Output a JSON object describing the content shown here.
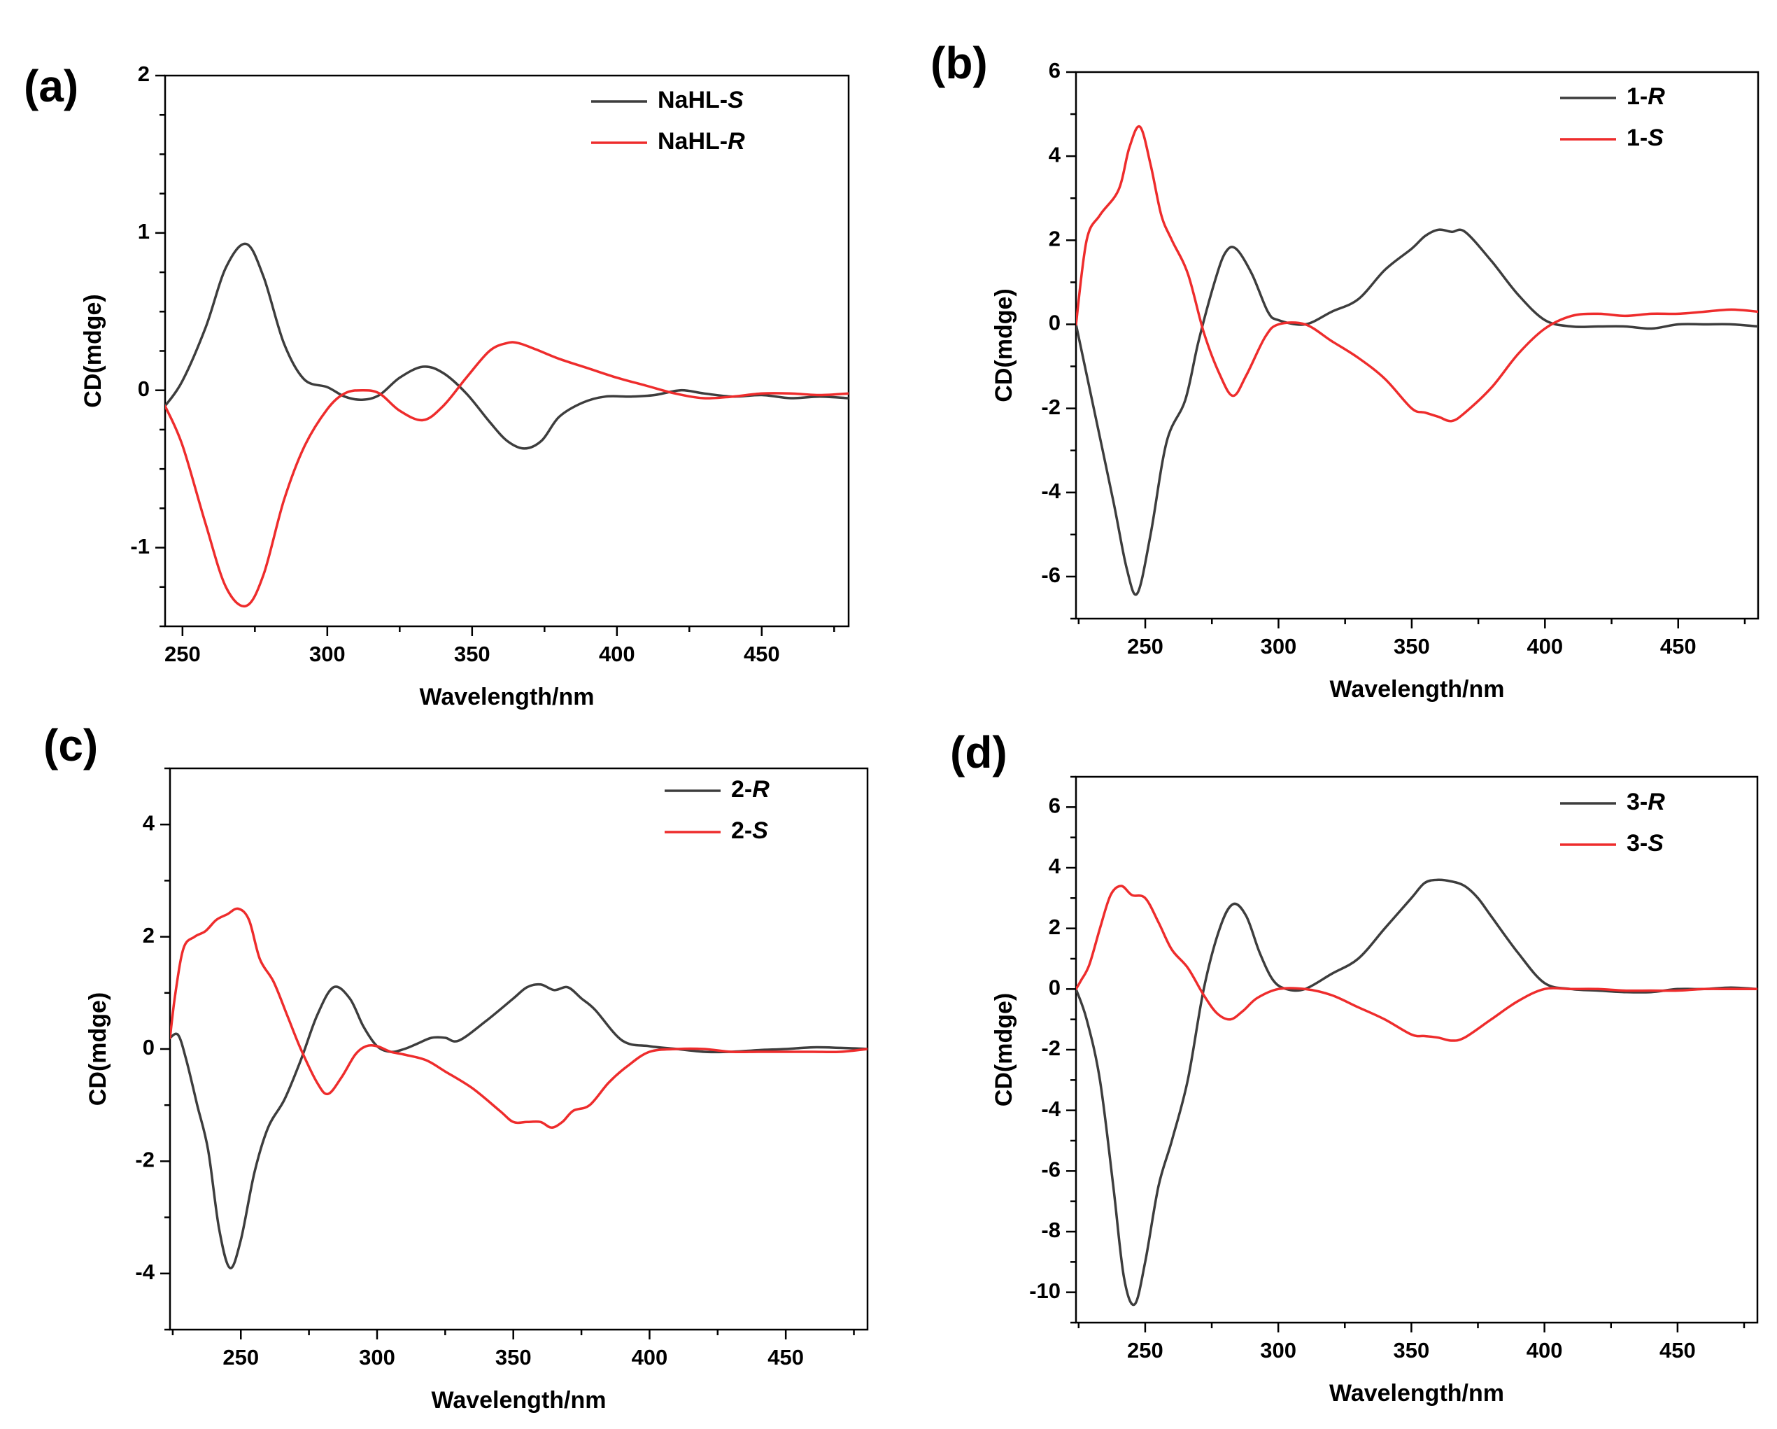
{
  "colors": {
    "black_series": "#3d3d3d",
    "red_series": "#ee2c2c",
    "axis": "#000000"
  },
  "chart_data": [
    {
      "type": "line",
      "panel_label": "(a)",
      "xlabel": "Wavelength/nm",
      "ylabel": "CD(mdge)",
      "xlim": [
        244,
        480
      ],
      "ylim": [
        -1.5,
        2
      ],
      "xticks": [
        250,
        300,
        350,
        400,
        450
      ],
      "yticks": [
        -1,
        0,
        1,
        2
      ],
      "xtick_labels": [
        "250",
        "300",
        "350",
        "400",
        "450"
      ],
      "ytick_labels": [
        "-1",
        "0",
        "1",
        "2"
      ],
      "xminor": 25,
      "yminor": 0.25,
      "legend_position": "top-right",
      "series": [
        {
          "name_prefix": "NaHL-",
          "name_suffix": "S",
          "color": "#3d3d3d",
          "x": [
            244,
            250,
            258,
            265,
            272,
            278,
            285,
            292,
            300,
            306,
            312,
            318,
            325,
            333,
            340,
            348,
            356,
            362,
            368,
            374,
            380,
            388,
            396,
            405,
            413,
            422,
            430,
            440,
            450,
            460,
            470,
            480
          ],
          "y": [
            -0.1,
            0.06,
            0.4,
            0.78,
            0.93,
            0.72,
            0.3,
            0.07,
            0.02,
            -0.04,
            -0.06,
            -0.03,
            0.08,
            0.15,
            0.11,
            -0.02,
            -0.2,
            -0.32,
            -0.37,
            -0.32,
            -0.17,
            -0.08,
            -0.04,
            -0.04,
            -0.03,
            0.0,
            -0.02,
            -0.04,
            -0.03,
            -0.05,
            -0.04,
            -0.05
          ]
        },
        {
          "name_prefix": "NaHL-",
          "name_suffix": "R",
          "color": "#ee2c2c",
          "x": [
            244,
            250,
            258,
            265,
            272,
            278,
            285,
            292,
            300,
            306,
            312,
            318,
            325,
            333,
            340,
            348,
            356,
            362,
            366,
            372,
            380,
            390,
            400,
            410,
            420,
            430,
            440,
            450,
            460,
            470,
            480
          ],
          "y": [
            -0.1,
            -0.35,
            -0.85,
            -1.25,
            -1.37,
            -1.17,
            -0.7,
            -0.36,
            -0.12,
            -0.02,
            0.0,
            -0.02,
            -0.13,
            -0.19,
            -0.1,
            0.08,
            0.25,
            0.3,
            0.3,
            0.26,
            0.2,
            0.14,
            0.08,
            0.03,
            -0.02,
            -0.05,
            -0.04,
            -0.02,
            -0.02,
            -0.03,
            -0.02
          ]
        }
      ]
    },
    {
      "type": "line",
      "panel_label": "(b)",
      "xlabel": "Wavelength/nm",
      "ylabel": "CD(mdge)",
      "xlim": [
        224,
        480
      ],
      "ylim": [
        -7,
        6
      ],
      "xticks": [
        250,
        300,
        350,
        400,
        450
      ],
      "yticks": [
        -6,
        -4,
        -2,
        0,
        2,
        4,
        6
      ],
      "xtick_labels": [
        "250",
        "300",
        "350",
        "400",
        "450"
      ],
      "ytick_labels": [
        "-6",
        "-4",
        "-2",
        "0",
        "2",
        "4",
        "6"
      ],
      "xminor": 25,
      "yminor": 1,
      "legend_position": "top-right",
      "series": [
        {
          "name_prefix": "1-",
          "name_suffix": "R",
          "color": "#3d3d3d",
          "x": [
            224,
            230,
            238,
            243,
            247,
            252,
            258,
            265,
            270,
            276,
            280,
            284,
            290,
            296,
            300,
            310,
            320,
            330,
            340,
            350,
            355,
            360,
            365,
            370,
            380,
            390,
            400,
            410,
            420,
            430,
            440,
            450,
            460,
            470,
            480
          ],
          "y": [
            0,
            -1.8,
            -4.2,
            -5.8,
            -6.4,
            -5.0,
            -2.8,
            -1.8,
            -0.4,
            1.0,
            1.7,
            1.8,
            1.2,
            0.3,
            0.1,
            0.0,
            0.3,
            0.6,
            1.3,
            1.8,
            2.1,
            2.25,
            2.2,
            2.2,
            1.5,
            0.7,
            0.1,
            -0.05,
            -0.05,
            -0.05,
            -0.1,
            0.0,
            0.0,
            0.0,
            -0.05
          ]
        },
        {
          "name_prefix": "1-",
          "name_suffix": "S",
          "color": "#ee2c2c",
          "x": [
            224,
            228,
            233,
            240,
            244,
            248,
            252,
            256,
            260,
            266,
            272,
            278,
            283,
            288,
            295,
            300,
            310,
            320,
            330,
            340,
            350,
            355,
            360,
            365,
            370,
            380,
            390,
            400,
            410,
            420,
            430,
            440,
            450,
            460,
            470,
            480
          ],
          "y": [
            0,
            2.0,
            2.6,
            3.2,
            4.2,
            4.7,
            3.8,
            2.6,
            2.0,
            1.2,
            -0.2,
            -1.2,
            -1.7,
            -1.2,
            -0.3,
            0.0,
            0.0,
            -0.4,
            -0.8,
            -1.3,
            -2.0,
            -2.1,
            -2.2,
            -2.3,
            -2.1,
            -1.5,
            -0.7,
            -0.1,
            0.2,
            0.25,
            0.2,
            0.25,
            0.25,
            0.3,
            0.35,
            0.3
          ]
        }
      ]
    },
    {
      "type": "line",
      "panel_label": "(c)",
      "xlabel": "Wavelength/nm",
      "ylabel": "CD(mdge)",
      "xlim": [
        224,
        480
      ],
      "ylim": [
        -5,
        5
      ],
      "xticks": [
        250,
        300,
        350,
        400,
        450
      ],
      "yticks": [
        -4,
        -2,
        0,
        2,
        4
      ],
      "xtick_labels": [
        "250",
        "300",
        "350",
        "400",
        "450"
      ],
      "ytick_labels": [
        "-4",
        "-2",
        "0",
        "2",
        "4"
      ],
      "xminor": 25,
      "yminor": 1,
      "legend_position": "top-right",
      "series": [
        {
          "name_prefix": "2-",
          "name_suffix": "R",
          "color": "#3d3d3d",
          "x": [
            224,
            227,
            230,
            234,
            238,
            242,
            246,
            250,
            255,
            260,
            266,
            272,
            278,
            284,
            290,
            295,
            300,
            305,
            310,
            315,
            320,
            325,
            330,
            340,
            350,
            355,
            360,
            365,
            370,
            375,
            380,
            390,
            400,
            410,
            420,
            430,
            440,
            450,
            460,
            470,
            480
          ],
          "y": [
            0.2,
            0.25,
            -0.2,
            -1.0,
            -1.8,
            -3.2,
            -3.9,
            -3.4,
            -2.2,
            -1.4,
            -0.9,
            -0.2,
            0.6,
            1.1,
            0.9,
            0.4,
            0.05,
            -0.05,
            0.0,
            0.1,
            0.2,
            0.2,
            0.15,
            0.5,
            0.9,
            1.1,
            1.15,
            1.05,
            1.1,
            0.9,
            0.7,
            0.15,
            0.05,
            0.0,
            -0.05,
            -0.05,
            -0.02,
            0.0,
            0.03,
            0.02,
            0.0
          ]
        },
        {
          "name_prefix": "2-",
          "name_suffix": "S",
          "color": "#ee2c2c",
          "x": [
            224,
            226,
            229,
            233,
            237,
            241,
            245,
            249,
            253,
            257,
            262,
            267,
            272,
            278,
            282,
            287,
            292,
            296,
            300,
            305,
            310,
            318,
            325,
            335,
            345,
            350,
            355,
            360,
            364,
            368,
            372,
            378,
            385,
            392,
            400,
            410,
            420,
            430,
            440,
            450,
            460,
            470,
            480
          ],
          "y": [
            0.2,
            1.0,
            1.8,
            2.0,
            2.1,
            2.3,
            2.4,
            2.5,
            2.3,
            1.6,
            1.2,
            0.6,
            0.0,
            -0.6,
            -0.8,
            -0.5,
            -0.1,
            0.05,
            0.05,
            -0.05,
            -0.1,
            -0.2,
            -0.4,
            -0.7,
            -1.1,
            -1.3,
            -1.3,
            -1.3,
            -1.4,
            -1.3,
            -1.1,
            -1.0,
            -0.6,
            -0.3,
            -0.05,
            0.0,
            0.0,
            -0.05,
            -0.05,
            -0.05,
            -0.05,
            -0.05,
            0.0
          ]
        }
      ]
    },
    {
      "type": "line",
      "panel_label": "(d)",
      "xlabel": "Wavelength/nm",
      "ylabel": "CD(mdge)",
      "xlim": [
        224,
        480
      ],
      "ylim": [
        -11,
        7
      ],
      "xticks": [
        250,
        300,
        350,
        400,
        450
      ],
      "yticks": [
        -10,
        -8,
        -6,
        -4,
        -2,
        0,
        2,
        4,
        6
      ],
      "xtick_labels": [
        "250",
        "300",
        "350",
        "400",
        "450"
      ],
      "ytick_labels": [
        "-10",
        "-8",
        "-6",
        "-4",
        "-2",
        "0",
        "2",
        "4",
        "6"
      ],
      "xminor": 25,
      "yminor": 1,
      "legend_position": "top-right",
      "series": [
        {
          "name_prefix": "3-",
          "name_suffix": "R",
          "color": "#3d3d3d",
          "x": [
            224,
            228,
            233,
            238,
            242,
            246,
            250,
            255,
            260,
            266,
            272,
            278,
            283,
            288,
            293,
            298,
            303,
            310,
            320,
            330,
            340,
            350,
            355,
            360,
            365,
            370,
            375,
            380,
            390,
            400,
            410,
            420,
            430,
            440,
            450,
            460,
            470,
            480
          ],
          "y": [
            0,
            -1.0,
            -3.0,
            -6.5,
            -9.5,
            -10.4,
            -9.0,
            -6.5,
            -5.0,
            -3.0,
            0.0,
            2.0,
            2.8,
            2.4,
            1.2,
            0.3,
            0.0,
            0.0,
            0.5,
            1.0,
            2.0,
            3.0,
            3.5,
            3.6,
            3.55,
            3.4,
            3.0,
            2.4,
            1.2,
            0.2,
            0.0,
            -0.05,
            -0.1,
            -0.1,
            0.0,
            0.0,
            0.05,
            0.0
          ]
        },
        {
          "name_prefix": "3-",
          "name_suffix": "S",
          "color": "#ee2c2c",
          "x": [
            224,
            226,
            229,
            233,
            237,
            241,
            245,
            250,
            255,
            260,
            266,
            272,
            277,
            282,
            287,
            292,
            300,
            310,
            320,
            330,
            340,
            350,
            355,
            360,
            365,
            370,
            380,
            390,
            400,
            410,
            420,
            430,
            440,
            450,
            460,
            470,
            480
          ],
          "y": [
            0,
            0.3,
            0.8,
            2.0,
            3.1,
            3.4,
            3.1,
            3.0,
            2.2,
            1.3,
            0.7,
            -0.2,
            -0.8,
            -1.0,
            -0.7,
            -0.3,
            0.0,
            0.0,
            -0.2,
            -0.6,
            -1.0,
            -1.5,
            -1.55,
            -1.6,
            -1.7,
            -1.6,
            -1.0,
            -0.4,
            0.0,
            0.0,
            0.0,
            -0.05,
            -0.05,
            -0.05,
            0.0,
            0.0,
            0.0
          ]
        }
      ]
    }
  ]
}
